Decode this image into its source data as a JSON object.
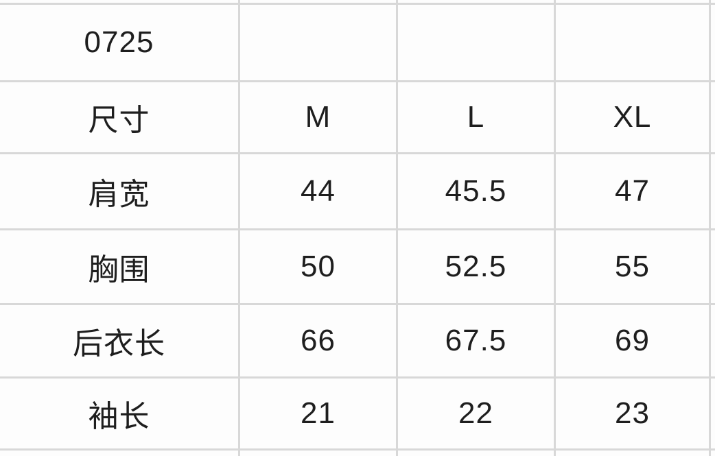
{
  "meta": {
    "background_color": "#fdfdfd",
    "grid_line_color": "#d8d8d8",
    "text_color": "#1e1e1e"
  },
  "chart_data": {
    "type": "table",
    "title": "0725",
    "columns": [
      "尺寸",
      "M",
      "L",
      "XL"
    ],
    "rows": [
      {
        "label": "肩宽",
        "values": [
          44,
          45.5,
          47
        ]
      },
      {
        "label": "胸围",
        "values": [
          50,
          52.5,
          55
        ]
      },
      {
        "label": "后衣长",
        "values": [
          66,
          67.5,
          69
        ]
      },
      {
        "label": "袖长",
        "values": [
          21,
          22,
          23
        ]
      }
    ],
    "layout": {
      "grid": "on",
      "row_label_column": "尺寸",
      "units_shown": false
    }
  }
}
